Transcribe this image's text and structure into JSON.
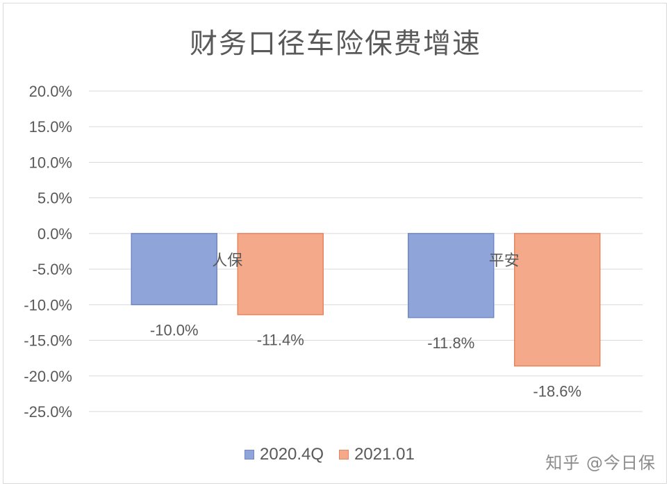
{
  "chart_data": {
    "type": "bar",
    "title": "财务口径车险保费增速",
    "categories": [
      "人保",
      "平安"
    ],
    "series": [
      {
        "name": "2020.4Q",
        "values": [
          -10.0,
          -11.8
        ],
        "labels": [
          "-10.0%",
          "-11.8%"
        ],
        "color": "#8fa4d9",
        "stroke": "#6f87c7"
      },
      {
        "name": "2021.01",
        "values": [
          -11.4,
          -18.6
        ],
        "labels": [
          "-11.4%",
          "-18.6%"
        ],
        "color": "#f4a98a",
        "stroke": "#e8855f"
      }
    ],
    "yticks": [
      "20.0%",
      "15.0%",
      "10.0%",
      "5.0%",
      "0.0%",
      "-5.0%",
      "-10.0%",
      "-15.0%",
      "-20.0%",
      "-25.0%"
    ],
    "ylim": [
      -25,
      20
    ],
    "grid": true,
    "legend_position": "bottom",
    "xlabel": "",
    "ylabel": ""
  },
  "watermark": "知乎 @今日保"
}
